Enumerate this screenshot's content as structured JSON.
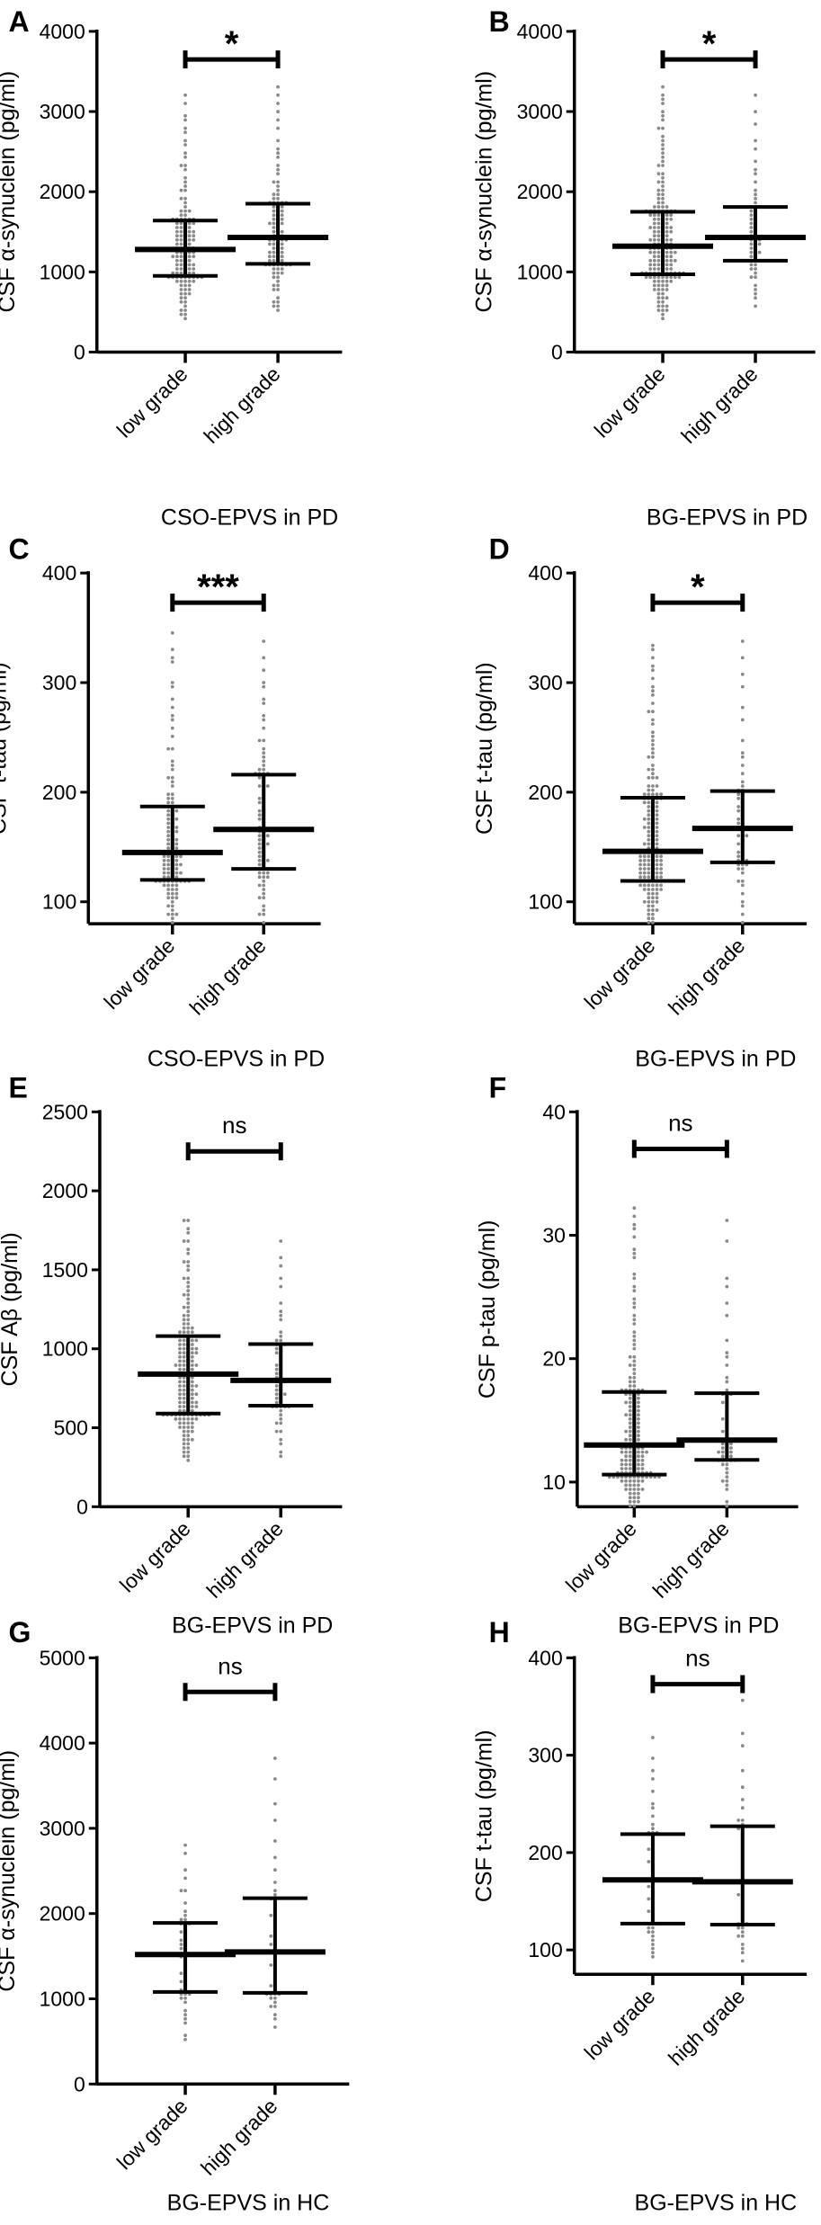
{
  "chart_data": [
    {
      "panel": "A",
      "type": "scatter",
      "ylabel": "CSF α-synuclein (pg/ml)",
      "xlabel": "CSO-EPVS in PD",
      "categories": [
        "low grade",
        "high grade"
      ],
      "ylim": [
        0,
        4000
      ],
      "yticks": [
        "0",
        "1000",
        "2000",
        "3000",
        "4000"
      ],
      "significance": "*",
      "bracket_y": 3650,
      "series": [
        {
          "category": "low grade",
          "median": 1280,
          "q1": 950,
          "q3": 1640,
          "min": 420,
          "max": 3220
        },
        {
          "category": "high grade",
          "median": 1430,
          "q1": 1100,
          "q3": 1850,
          "min": 460,
          "max": 3330
        }
      ]
    },
    {
      "panel": "B",
      "type": "scatter",
      "ylabel": "CSF α-synuclein (pg/ml)",
      "xlabel": "BG-EPVS in PD",
      "categories": [
        "low grade",
        "high grade"
      ],
      "ylim": [
        0,
        4000
      ],
      "yticks": [
        "0",
        "1000",
        "2000",
        "3000",
        "4000"
      ],
      "significance": "*",
      "bracket_y": 3650,
      "series": [
        {
          "category": "low grade",
          "median": 1320,
          "q1": 970,
          "q3": 1750,
          "min": 430,
          "max": 3330
        },
        {
          "category": "high grade",
          "median": 1430,
          "q1": 1140,
          "q3": 1810,
          "min": 530,
          "max": 3280
        }
      ]
    },
    {
      "panel": "C",
      "type": "scatter",
      "ylabel": "CSF t-tau (pg/ml)",
      "xlabel": "CSO-EPVS in PD",
      "categories": [
        "low grade",
        "high grade"
      ],
      "ylim": [
        80,
        400
      ],
      "yticks": [
        "100",
        "200",
        "300",
        "400"
      ],
      "significance": "***",
      "bracket_y": 373,
      "series": [
        {
          "category": "low grade",
          "median": 145,
          "q1": 120,
          "q3": 187,
          "min": 80,
          "max": 350
        },
        {
          "category": "high grade",
          "median": 166,
          "q1": 130,
          "q3": 216,
          "min": 80,
          "max": 340
        }
      ]
    },
    {
      "panel": "D",
      "type": "scatter",
      "ylabel": "CSF t-tau (pg/ml)",
      "xlabel": "BG-EPVS in PD",
      "categories": [
        "low grade",
        "high grade"
      ],
      "ylim": [
        80,
        400
      ],
      "yticks": [
        "100",
        "200",
        "300",
        "400"
      ],
      "significance": "*",
      "bracket_y": 373,
      "series": [
        {
          "category": "low grade",
          "median": 146,
          "q1": 119,
          "q3": 195,
          "min": 80,
          "max": 338
        },
        {
          "category": "high grade",
          "median": 167,
          "q1": 136,
          "q3": 201,
          "min": 80,
          "max": 350
        }
      ]
    },
    {
      "panel": "E",
      "type": "scatter",
      "ylabel": "CSF Aβ (pg/ml)",
      "xlabel": "BG-EPVS in PD",
      "categories": [
        "low grade",
        "high grade"
      ],
      "ylim": [
        0,
        2500
      ],
      "yticks": [
        "0",
        "500",
        "1000",
        "1500",
        "2000",
        "2500"
      ],
      "significance": "ns",
      "bracket_y": 2250,
      "series": [
        {
          "category": "low grade",
          "median": 840,
          "q1": 590,
          "q3": 1080,
          "min": 300,
          "max": 1850
        },
        {
          "category": "high grade",
          "median": 800,
          "q1": 640,
          "q3": 1030,
          "min": 270,
          "max": 1720
        }
      ]
    },
    {
      "panel": "F",
      "type": "scatter",
      "ylabel": "CSF p-tau (pg/ml)",
      "xlabel": "BG-EPVS in PD",
      "categories": [
        "low grade",
        "high grade"
      ],
      "ylim": [
        8,
        40
      ],
      "yticks": [
        "10",
        "20",
        "30",
        "40"
      ],
      "significance": "ns",
      "bracket_y": 37,
      "series": [
        {
          "category": "low grade",
          "median": 13.0,
          "q1": 10.6,
          "q3": 17.3,
          "min": 8,
          "max": 32.8
        },
        {
          "category": "high grade",
          "median": 13.4,
          "q1": 11.8,
          "q3": 17.2,
          "min": 8,
          "max": 31.5
        }
      ]
    },
    {
      "panel": "G",
      "type": "scatter",
      "ylabel": "CSF α-synuclein (pg/ml)",
      "xlabel": "BG-EPVS in HC",
      "categories": [
        "low grade",
        "high grade"
      ],
      "ylim": [
        0,
        5000
      ],
      "yticks": [
        "0",
        "1000",
        "2000",
        "3000",
        "4000",
        "5000"
      ],
      "significance": "ns",
      "bracket_y": 4600,
      "series": [
        {
          "category": "low grade",
          "median": 1520,
          "q1": 1080,
          "q3": 1890,
          "min": 490,
          "max": 2900
        },
        {
          "category": "high grade",
          "median": 1550,
          "q1": 1070,
          "q3": 2180,
          "min": 680,
          "max": 4030
        }
      ]
    },
    {
      "panel": "H",
      "type": "scatter",
      "ylabel": "CSF t-tau (pg/ml)",
      "xlabel": "BG-EPVS in HC",
      "categories": [
        "low grade",
        "high grade"
      ],
      "ylim": [
        75,
        400
      ],
      "yticks": [
        "100",
        "200",
        "300",
        "400"
      ],
      "significance": "ns",
      "bracket_y": 373,
      "series": [
        {
          "category": "low grade",
          "median": 172,
          "q1": 127,
          "q3": 219,
          "min": 86,
          "max": 318
        },
        {
          "category": "high grade",
          "median": 170,
          "q1": 126,
          "q3": 227,
          "min": 85,
          "max": 392
        }
      ]
    }
  ],
  "colors": {
    "points": "#8a8a8a",
    "lines": "#000000"
  }
}
